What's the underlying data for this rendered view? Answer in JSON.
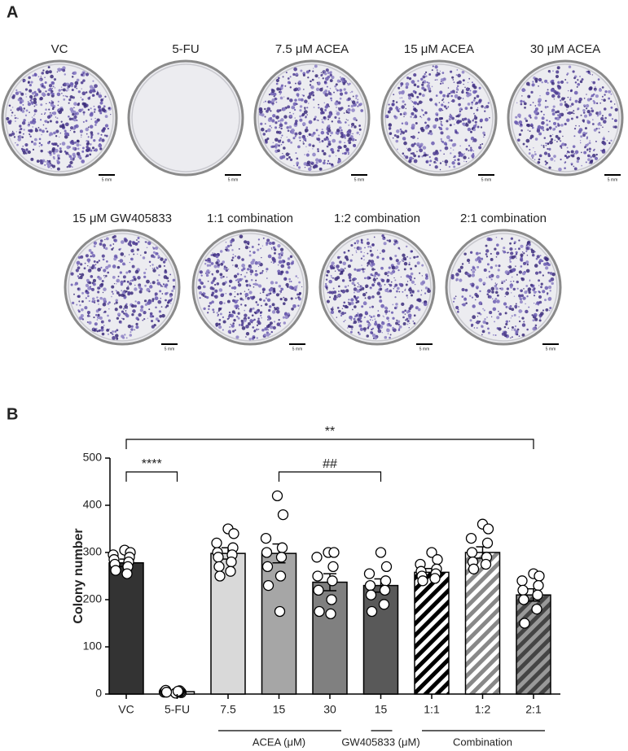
{
  "panel_a": {
    "label": "A",
    "scale_label": "5 mm",
    "plates": [
      "VC",
      "5-FU",
      "7.5 μM ACEA",
      "15 μM ACEA",
      "30 μM ACEA",
      "15 μM GW405833",
      "1:1 combination",
      "1:2 combination",
      "2:1 combination"
    ]
  },
  "chart_data": {
    "type": "bar",
    "panel_label": "B",
    "ylabel": "Colony number",
    "categories": [
      "VC",
      "5-FU",
      "7.5",
      "15",
      "30",
      "15",
      "1:1",
      "1:2",
      "2:1"
    ],
    "values": [
      278,
      5,
      298,
      298,
      237,
      230,
      258,
      300,
      210
    ],
    "errors": [
      8,
      1,
      12,
      20,
      18,
      14,
      8,
      12,
      13
    ],
    "colors": [
      "#333333",
      "#ffffff",
      "#d9d9d9",
      "#a6a6a6",
      "#808080",
      "#595959",
      "#ffffff",
      "#ffffff",
      "#999999"
    ],
    "hatch_colors": [
      null,
      null,
      null,
      null,
      null,
      null,
      "#000000",
      "#888888",
      "#444444"
    ],
    "points": [
      [
        305,
        300,
        295,
        290,
        285,
        280,
        275,
        270,
        262,
        255
      ],
      [
        2,
        3,
        4,
        5,
        6,
        7,
        8,
        5,
        4,
        6
      ],
      [
        350,
        340,
        320,
        310,
        300,
        295,
        290,
        280,
        270,
        260,
        250
      ],
      [
        420,
        380,
        330,
        310,
        300,
        290,
        270,
        250,
        230,
        175
      ],
      [
        300,
        300,
        290,
        270,
        250,
        240,
        220,
        200,
        175,
        170
      ],
      [
        300,
        270,
        255,
        240,
        230,
        220,
        210,
        190,
        175
      ],
      [
        300,
        285,
        275,
        265,
        260,
        255,
        250,
        245,
        240
      ],
      [
        360,
        350,
        330,
        320,
        300,
        290,
        280,
        275,
        265
      ],
      [
        255,
        250,
        240,
        230,
        220,
        210,
        200,
        180,
        150
      ]
    ],
    "groups": [
      "ACEA (μM)",
      "GW405833 (μM)",
      "Combination"
    ],
    "annotations": [
      "****",
      "##",
      "**"
    ],
    "ylim": [
      0,
      500
    ],
    "yticks": [
      0,
      100,
      200,
      300,
      400,
      500
    ]
  }
}
